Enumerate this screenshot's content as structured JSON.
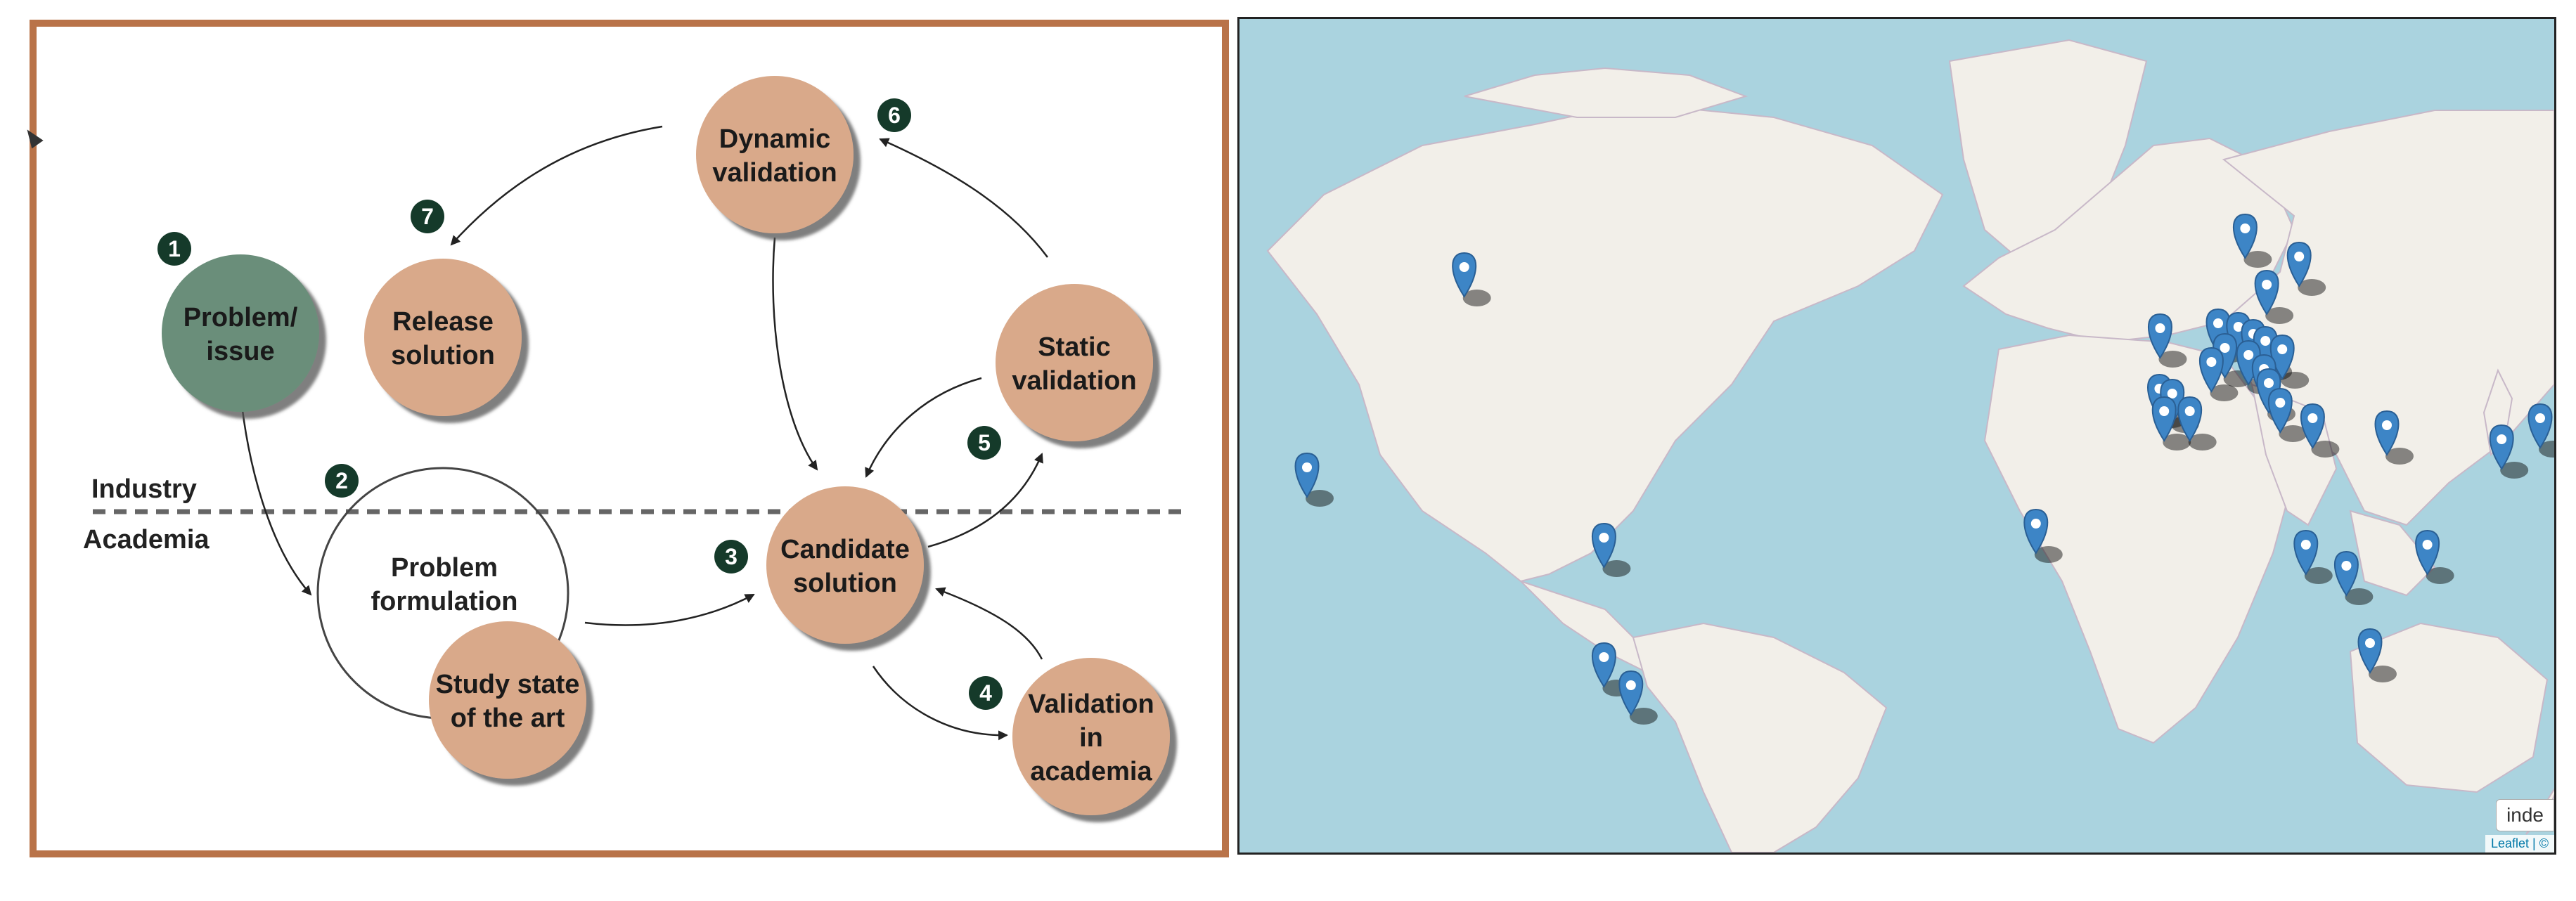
{
  "diagram": {
    "nodes": [
      {
        "id": "problem",
        "lines": [
          "Problem/",
          "issue"
        ],
        "badge": "1",
        "color": "#6b8e7a"
      },
      {
        "id": "release",
        "lines": [
          "Release",
          "solution"
        ],
        "badge": "7",
        "color": "#d9a98a"
      },
      {
        "id": "dynamic",
        "lines": [
          "Dynamic",
          "validation"
        ],
        "badge": "6",
        "color": "#d9a98a"
      },
      {
        "id": "static",
        "lines": [
          "Static",
          "validation"
        ],
        "badge": "5",
        "color": "#d9a98a"
      },
      {
        "id": "candidate",
        "lines": [
          "Candidate",
          "solution"
        ],
        "badge": "3",
        "color": "#d9a98a"
      },
      {
        "id": "validation",
        "lines": [
          "Validation",
          "in",
          "academia"
        ],
        "badge": "4",
        "color": "#d9a98a"
      },
      {
        "id": "study",
        "lines": [
          "Study state",
          "of the art"
        ],
        "badge": "",
        "color": "#d9a98a"
      }
    ],
    "problem_formulation": {
      "lines": [
        "Problem",
        "formulation"
      ],
      "badge": "2"
    },
    "zones": {
      "industry": "Industry",
      "academia": "Academia"
    }
  },
  "map": {
    "button_label": "inde",
    "attribution": "Leaflet | ©",
    "water_color": "#aad3df",
    "land_color": "#f2efe9",
    "marker_color": "#3d85c6",
    "marker_count": 33
  }
}
